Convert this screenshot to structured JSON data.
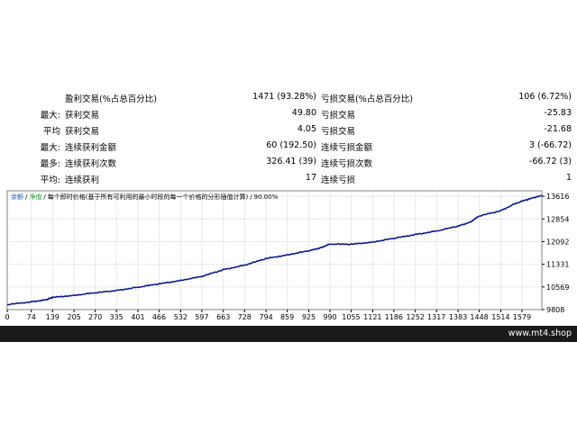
{
  "stats": {
    "rows": [
      {
        "prefix": "",
        "label1": "盈利交易(%占总百分比)",
        "value1": "1471 (93.28%)",
        "label2": "亏损交易(%占总百分比)",
        "value2": "106 (6.72%)"
      },
      {
        "prefix": "最大:",
        "label1": "获利交易",
        "value1": "49.80",
        "label2": "亏损交易",
        "value2": "-25.83"
      },
      {
        "prefix": "平均",
        "label1": "获利交易",
        "value1": "4.05",
        "label2": "亏损交易",
        "value2": "-21.68"
      },
      {
        "prefix": "最大:",
        "label1": "连续获利金额",
        "value1": "60 (192.50)",
        "label2": "连续亏损金额",
        "value2": "3 (-66.72)"
      },
      {
        "prefix": "最多:",
        "label1": "连续获利次数",
        "value1": "326.41 (39)",
        "label2": "连续亏损次数",
        "value2": "-66.72 (3)"
      },
      {
        "prefix": "平均:",
        "label1": "连续获利",
        "value1": "17",
        "label2": "连续亏损",
        "value2": "1"
      }
    ]
  },
  "chart_legend": {
    "balance_label": "余额",
    "separator1": "/",
    "equity_label": "净值",
    "separator2": "/",
    "description": "每个即时价格(基于所有可利用的最小时段的每一个价格的分形插值计算)",
    "separator3": "/",
    "quality": "90.00%"
  },
  "chart_data": {
    "type": "line",
    "title": "",
    "xlabel": "",
    "ylabel": "",
    "xlim": [
      0,
      1640
    ],
    "ylim": [
      9808,
      13800
    ],
    "x_ticks": [
      0,
      74,
      139,
      205,
      270,
      335,
      401,
      466,
      532,
      597,
      663,
      728,
      794,
      859,
      925,
      990,
      1055,
      1121,
      1186,
      1252,
      1317,
      1383,
      1448,
      1514,
      1579
    ],
    "y_ticks": [
      9808,
      10569,
      11331,
      12092,
      12854,
      13616
    ],
    "series": [
      {
        "color": "#0a1a8a",
        "points": [
          [
            0,
            9972
          ],
          [
            74,
            10070
          ],
          [
            120,
            10140
          ],
          [
            139,
            10215
          ],
          [
            205,
            10290
          ],
          [
            270,
            10370
          ],
          [
            335,
            10450
          ],
          [
            401,
            10560
          ],
          [
            466,
            10670
          ],
          [
            532,
            10790
          ],
          [
            597,
            10920
          ],
          [
            663,
            11150
          ],
          [
            728,
            11300
          ],
          [
            794,
            11520
          ],
          [
            859,
            11650
          ],
          [
            925,
            11780
          ],
          [
            960,
            11880
          ],
          [
            990,
            12010
          ],
          [
            1055,
            12000
          ],
          [
            1121,
            12080
          ],
          [
            1186,
            12200
          ],
          [
            1252,
            12330
          ],
          [
            1317,
            12450
          ],
          [
            1383,
            12610
          ],
          [
            1420,
            12750
          ],
          [
            1448,
            12950
          ],
          [
            1514,
            13130
          ],
          [
            1560,
            13380
          ],
          [
            1600,
            13520
          ],
          [
            1640,
            13650
          ]
        ]
      }
    ]
  },
  "footer": {
    "site": "www.mt4.shop"
  },
  "colors": {
    "line": "#0a1a8a",
    "grid": "#d4d4d4",
    "footer_bg": "#1a1a1a",
    "legend_accent": "#1a5fb4"
  }
}
